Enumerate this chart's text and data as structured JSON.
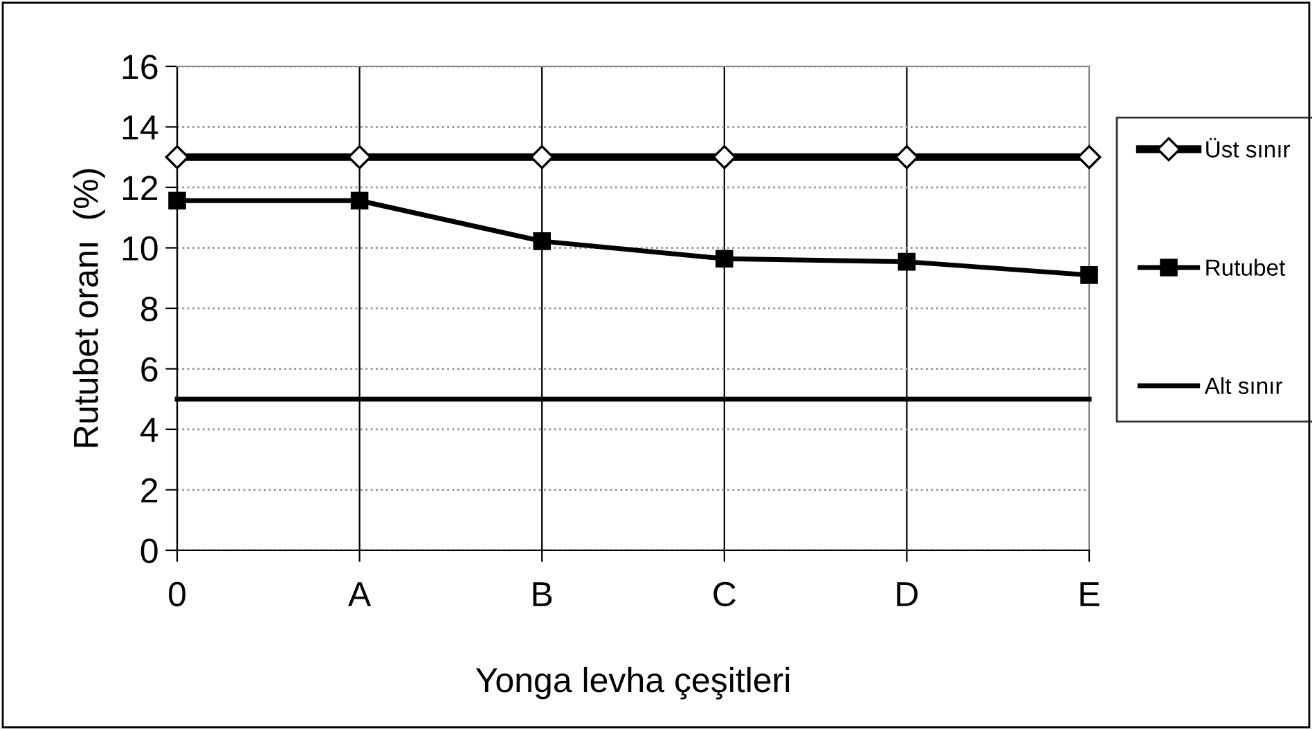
{
  "chart_data": {
    "type": "line",
    "xlabel": "Yonga levha çeşitleri",
    "ylabel": "Rutubet oranı  (%)",
    "categories": [
      "0",
      "A",
      "B",
      "C",
      "D",
      "E"
    ],
    "series": [
      {
        "name": "Üst sınır",
        "color": "#000000",
        "marker": "diamond",
        "values": [
          13,
          13,
          13,
          13,
          13,
          13
        ]
      },
      {
        "name": "Rutubet",
        "color": "#000000",
        "marker": "square",
        "values": [
          11.56,
          11.56,
          10.22,
          9.64,
          9.54,
          9.1
        ]
      },
      {
        "name": "Alt sınır",
        "color": "#000000",
        "marker": "none",
        "values": [
          5,
          5,
          5,
          5,
          5,
          5
        ]
      }
    ],
    "ylim": [
      0,
      16
    ],
    "yticks": [
      0,
      2,
      4,
      6,
      8,
      10,
      12,
      14,
      16
    ],
    "grid": true,
    "legend": "right",
    "line_style": "solid"
  }
}
